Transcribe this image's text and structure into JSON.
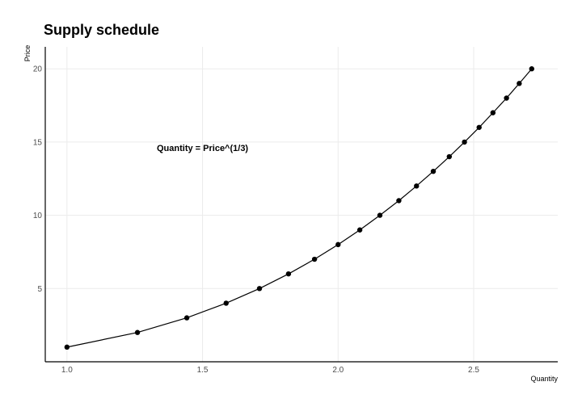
{
  "chart_data": {
    "type": "line",
    "title": "Supply schedule",
    "xlabel": "Quantity",
    "ylabel": "Price",
    "xlim": [
      0.92,
      2.81
    ],
    "ylim": [
      0,
      21.5
    ],
    "xticks": [
      1.0,
      1.5,
      2.0,
      2.5
    ],
    "xtick_labels": [
      "1.0",
      "1.5",
      "2.0",
      "2.5"
    ],
    "yticks": [
      5,
      10,
      15,
      20
    ],
    "ytick_labels": [
      "5",
      "10",
      "15",
      "20"
    ],
    "grid": true,
    "annotation": {
      "text": "Quantity = Price^(1/3)",
      "x": 1.5,
      "y": 14.4
    },
    "series": [
      {
        "markers": true,
        "x": [
          1.0,
          1.26,
          1.442,
          1.587,
          1.71,
          1.817,
          1.913,
          2.0,
          2.08,
          2.154,
          2.224,
          2.289,
          2.351,
          2.41,
          2.466,
          2.52,
          2.571,
          2.621,
          2.668,
          2.714
        ],
        "y": [
          1,
          2,
          3,
          4,
          5,
          6,
          7,
          8,
          9,
          10,
          11,
          12,
          13,
          14,
          15,
          16,
          17,
          18,
          19,
          20
        ]
      }
    ]
  }
}
